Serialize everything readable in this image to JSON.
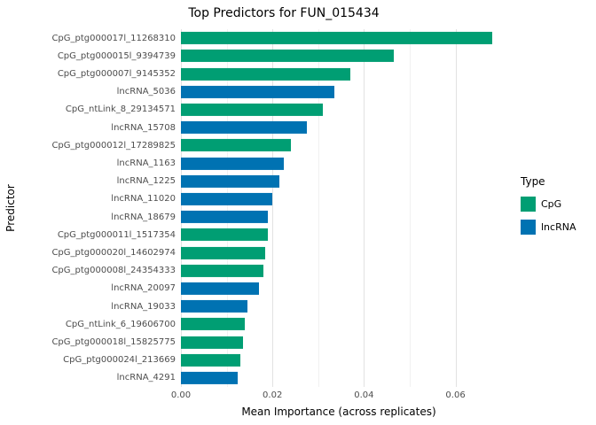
{
  "chart_data": {
    "type": "bar",
    "orientation": "horizontal",
    "title": "Top Predictors for FUN_015434",
    "xlabel": "Mean Importance (across replicates)",
    "ylabel": "Predictor",
    "xlim": [
      0,
      0.069
    ],
    "x_ticks": [
      0.0,
      0.02,
      0.04,
      0.06
    ],
    "x_tick_labels": [
      "0.00",
      "0.02",
      "0.04",
      "0.06"
    ],
    "x_minor_ticks": [
      0.01,
      0.03,
      0.05
    ],
    "grid": true,
    "legend": {
      "title": "Type",
      "position": "right",
      "entries": [
        {
          "label": "CpG",
          "color": "#009E73"
        },
        {
          "label": "lncRNA",
          "color": "#0072B2"
        }
      ]
    },
    "categories": [
      "CpG_ptg000017l_11268310",
      "CpG_ptg000015l_9394739",
      "CpG_ptg000007l_9145352",
      "lncRNA_5036",
      "CpG_ntLink_8_29134571",
      "lncRNA_15708",
      "CpG_ptg000012l_17289825",
      "lncRNA_1163",
      "lncRNA_1225",
      "lncRNA_11020",
      "lncRNA_18679",
      "CpG_ptg000011l_1517354",
      "CpG_ptg000020l_14602974",
      "CpG_ptg000008l_24354333",
      "lncRNA_20097",
      "lncRNA_19033",
      "CpG_ntLink_6_19606700",
      "CpG_ptg000018l_15825775",
      "CpG_ptg000024l_213669",
      "lncRNA_4291"
    ],
    "values": [
      0.068,
      0.0465,
      0.037,
      0.0335,
      0.031,
      0.0275,
      0.024,
      0.0225,
      0.0215,
      0.02,
      0.019,
      0.019,
      0.0185,
      0.018,
      0.017,
      0.0145,
      0.014,
      0.0135,
      0.013,
      0.0125
    ],
    "types": [
      "CpG",
      "CpG",
      "CpG",
      "lncRNA",
      "CpG",
      "lncRNA",
      "CpG",
      "lncRNA",
      "lncRNA",
      "lncRNA",
      "lncRNA",
      "CpG",
      "CpG",
      "CpG",
      "lncRNA",
      "lncRNA",
      "CpG",
      "CpG",
      "CpG",
      "lncRNA"
    ]
  }
}
